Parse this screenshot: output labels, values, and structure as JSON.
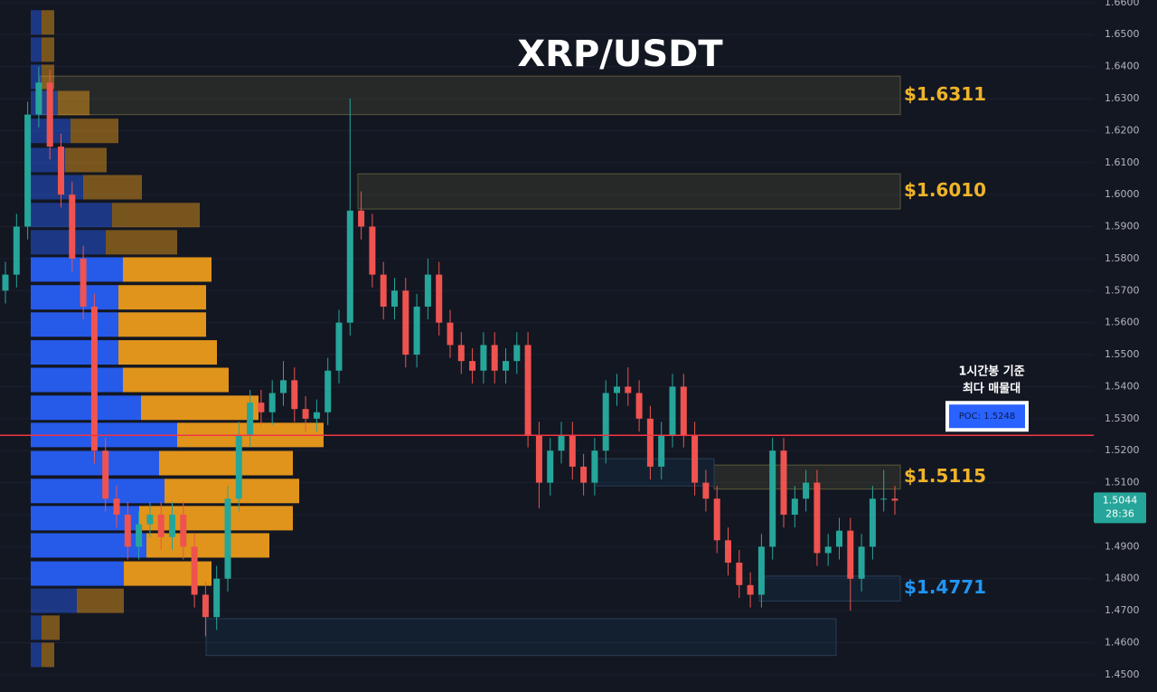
{
  "chart_data": {
    "type": "candlestick",
    "title": "XRP/USDT",
    "ylim": [
      1.4446,
      1.6608
    ],
    "yticks": [
      {
        "value": 1.45,
        "label": "1.4500"
      },
      {
        "value": 1.46,
        "label": "1.4600"
      },
      {
        "value": 1.47,
        "label": "1.4700"
      },
      {
        "value": 1.48,
        "label": "1.4800"
      },
      {
        "value": 1.49,
        "label": "1.4900"
      },
      {
        "value": 1.5,
        "label": "1.5000"
      },
      {
        "value": 1.51,
        "label": "1.5100"
      },
      {
        "value": 1.52,
        "label": "1.5200"
      },
      {
        "value": 1.53,
        "label": "1.5300"
      },
      {
        "value": 1.54,
        "label": "1.5400"
      },
      {
        "value": 1.55,
        "label": "1.5500"
      },
      {
        "value": 1.56,
        "label": "1.5600"
      },
      {
        "value": 1.57,
        "label": "1.5700"
      },
      {
        "value": 1.58,
        "label": "1.5800"
      },
      {
        "value": 1.59,
        "label": "1.5900"
      },
      {
        "value": 1.6,
        "label": "1.6000"
      },
      {
        "value": 1.61,
        "label": "1.6100"
      },
      {
        "value": 1.62,
        "label": "1.6200"
      },
      {
        "value": 1.63,
        "label": "1.6300"
      },
      {
        "value": 1.64,
        "label": "1.6400"
      },
      {
        "value": 1.65,
        "label": "1.6500"
      },
      {
        "value": 1.66,
        "label": "1.6600"
      }
    ],
    "grid": true,
    "up_color": "#26a69a",
    "down_color": "#ef5350",
    "candles": [
      [
        1.57,
        1.579,
        1.566,
        1.575
      ],
      [
        1.575,
        1.594,
        1.571,
        1.59
      ],
      [
        1.59,
        1.629,
        1.586,
        1.625
      ],
      [
        1.625,
        1.64,
        1.621,
        1.635
      ],
      [
        1.635,
        1.639,
        1.611,
        1.615
      ],
      [
        1.615,
        1.619,
        1.596,
        1.6
      ],
      [
        1.6,
        1.604,
        1.576,
        1.58
      ],
      [
        1.58,
        1.584,
        1.561,
        1.565
      ],
      [
        1.565,
        1.569,
        1.516,
        1.52
      ],
      [
        1.52,
        1.524,
        1.501,
        1.505
      ],
      [
        1.505,
        1.509,
        1.496,
        1.5
      ],
      [
        1.5,
        1.504,
        1.486,
        1.49
      ],
      [
        1.49,
        1.501,
        1.486,
        1.497
      ],
      [
        1.497,
        1.504,
        1.493,
        1.5
      ],
      [
        1.5,
        1.504,
        1.489,
        1.493
      ],
      [
        1.493,
        1.504,
        1.489,
        1.5
      ],
      [
        1.5,
        1.504,
        1.486,
        1.49
      ],
      [
        1.49,
        1.494,
        1.471,
        1.475
      ],
      [
        1.475,
        1.479,
        1.462,
        1.468
      ],
      [
        1.468,
        1.484,
        1.464,
        1.48
      ],
      [
        1.48,
        1.509,
        1.476,
        1.505
      ],
      [
        1.505,
        1.529,
        1.501,
        1.525
      ],
      [
        1.525,
        1.539,
        1.521,
        1.535
      ],
      [
        1.535,
        1.539,
        1.528,
        1.532
      ],
      [
        1.532,
        1.542,
        1.528,
        1.538
      ],
      [
        1.538,
        1.548,
        1.534,
        1.542
      ],
      [
        1.542,
        1.546,
        1.529,
        1.533
      ],
      [
        1.533,
        1.537,
        1.526,
        1.53
      ],
      [
        1.53,
        1.536,
        1.526,
        1.532
      ],
      [
        1.532,
        1.549,
        1.528,
        1.545
      ],
      [
        1.545,
        1.564,
        1.541,
        1.56
      ],
      [
        1.56,
        1.63,
        1.556,
        1.595
      ],
      [
        1.595,
        1.601,
        1.586,
        1.59
      ],
      [
        1.59,
        1.594,
        1.571,
        1.575
      ],
      [
        1.575,
        1.579,
        1.561,
        1.565
      ],
      [
        1.565,
        1.574,
        1.561,
        1.57
      ],
      [
        1.57,
        1.574,
        1.546,
        1.55
      ],
      [
        1.55,
        1.569,
        1.546,
        1.565
      ],
      [
        1.565,
        1.58,
        1.561,
        1.575
      ],
      [
        1.575,
        1.579,
        1.556,
        1.56
      ],
      [
        1.56,
        1.564,
        1.549,
        1.553
      ],
      [
        1.553,
        1.557,
        1.544,
        1.548
      ],
      [
        1.548,
        1.552,
        1.541,
        1.545
      ],
      [
        1.545,
        1.557,
        1.541,
        1.553
      ],
      [
        1.553,
        1.557,
        1.541,
        1.545
      ],
      [
        1.545,
        1.552,
        1.541,
        1.548
      ],
      [
        1.548,
        1.557,
        1.544,
        1.553
      ],
      [
        1.553,
        1.557,
        1.521,
        1.525
      ],
      [
        1.525,
        1.529,
        1.502,
        1.51
      ],
      [
        1.51,
        1.524,
        1.506,
        1.52
      ],
      [
        1.52,
        1.529,
        1.516,
        1.525
      ],
      [
        1.525,
        1.529,
        1.511,
        1.515
      ],
      [
        1.515,
        1.519,
        1.506,
        1.51
      ],
      [
        1.51,
        1.524,
        1.506,
        1.52
      ],
      [
        1.52,
        1.542,
        1.516,
        1.538
      ],
      [
        1.538,
        1.544,
        1.534,
        1.54
      ],
      [
        1.54,
        1.546,
        1.534,
        1.538
      ],
      [
        1.538,
        1.542,
        1.526,
        1.53
      ],
      [
        1.53,
        1.534,
        1.511,
        1.515
      ],
      [
        1.515,
        1.529,
        1.511,
        1.525
      ],
      [
        1.525,
        1.544,
        1.521,
        1.54
      ],
      [
        1.54,
        1.544,
        1.521,
        1.525
      ],
      [
        1.525,
        1.529,
        1.506,
        1.51
      ],
      [
        1.51,
        1.514,
        1.501,
        1.505
      ],
      [
        1.505,
        1.509,
        1.488,
        1.492
      ],
      [
        1.492,
        1.496,
        1.481,
        1.485
      ],
      [
        1.485,
        1.489,
        1.474,
        1.478
      ],
      [
        1.478,
        1.482,
        1.471,
        1.475
      ],
      [
        1.475,
        1.494,
        1.471,
        1.49
      ],
      [
        1.49,
        1.524,
        1.486,
        1.52
      ],
      [
        1.52,
        1.524,
        1.496,
        1.5
      ],
      [
        1.5,
        1.509,
        1.496,
        1.505
      ],
      [
        1.505,
        1.514,
        1.501,
        1.51
      ],
      [
        1.51,
        1.514,
        1.484,
        1.488
      ],
      [
        1.488,
        1.494,
        1.484,
        1.49
      ],
      [
        1.49,
        1.499,
        1.486,
        1.495
      ],
      [
        1.495,
        1.499,
        1.47,
        1.48
      ],
      [
        1.48,
        1.494,
        1.476,
        1.49
      ],
      [
        1.49,
        1.509,
        1.486,
        1.505
      ],
      [
        1.505,
        1.514,
        1.501,
        1.505
      ],
      [
        1.505,
        1.509,
        1.5,
        1.5044
      ]
    ],
    "volume_profile": {
      "buy_color": "#2962ff",
      "sell_color": "#f7a21b",
      "levels": [
        1.6538,
        1.6453,
        1.6368,
        1.6286,
        1.6199,
        1.6108,
        1.6023,
        1.5936,
        1.5851,
        1.5766,
        1.5679,
        1.5594,
        1.5507,
        1.5421,
        1.5334,
        1.5249,
        1.5161,
        1.5074,
        1.4989,
        1.4904,
        1.4816,
        1.4731,
        1.4647,
        1.4562
      ],
      "buy": [
        12,
        12,
        12,
        30,
        44,
        38,
        58,
        90,
        83,
        102,
        97,
        97,
        97,
        102,
        122,
        162,
        142,
        148,
        120,
        128,
        103,
        51,
        12,
        12
      ],
      "sell": [
        14,
        14,
        14,
        35,
        53,
        46,
        65,
        97,
        79,
        98,
        97,
        97,
        109,
        117,
        130,
        162,
        148,
        149,
        170,
        136,
        97,
        52,
        20,
        14
      ]
    },
    "zones": [
      {
        "label": "$1.6311",
        "top": 1.637,
        "bottom": 1.625,
        "color": "#f0b429"
      },
      {
        "label": "$1.6010",
        "top": 1.6065,
        "bottom": 1.5955,
        "color": "#f0b429"
      },
      {
        "label": "$1.5115",
        "top": 1.5155,
        "bottom": 1.508,
        "color": "#f0b429"
      },
      {
        "label": "$1.4771",
        "top": 1.4808,
        "bottom": 1.473,
        "color": "#2196f3"
      },
      {
        "top": 1.5175,
        "bottom": 1.509,
        "color": "#2196f3"
      },
      {
        "top": 1.4675,
        "bottom": 1.456,
        "color": "#2196f3"
      }
    ],
    "poc": {
      "value": 1.5248,
      "label": "POC: 1.5248",
      "color": "#f23645"
    },
    "annotation": [
      "1시간봉 기준",
      "최다 매물대"
    ],
    "last_price": 1.5044,
    "countdown": "28:36"
  }
}
